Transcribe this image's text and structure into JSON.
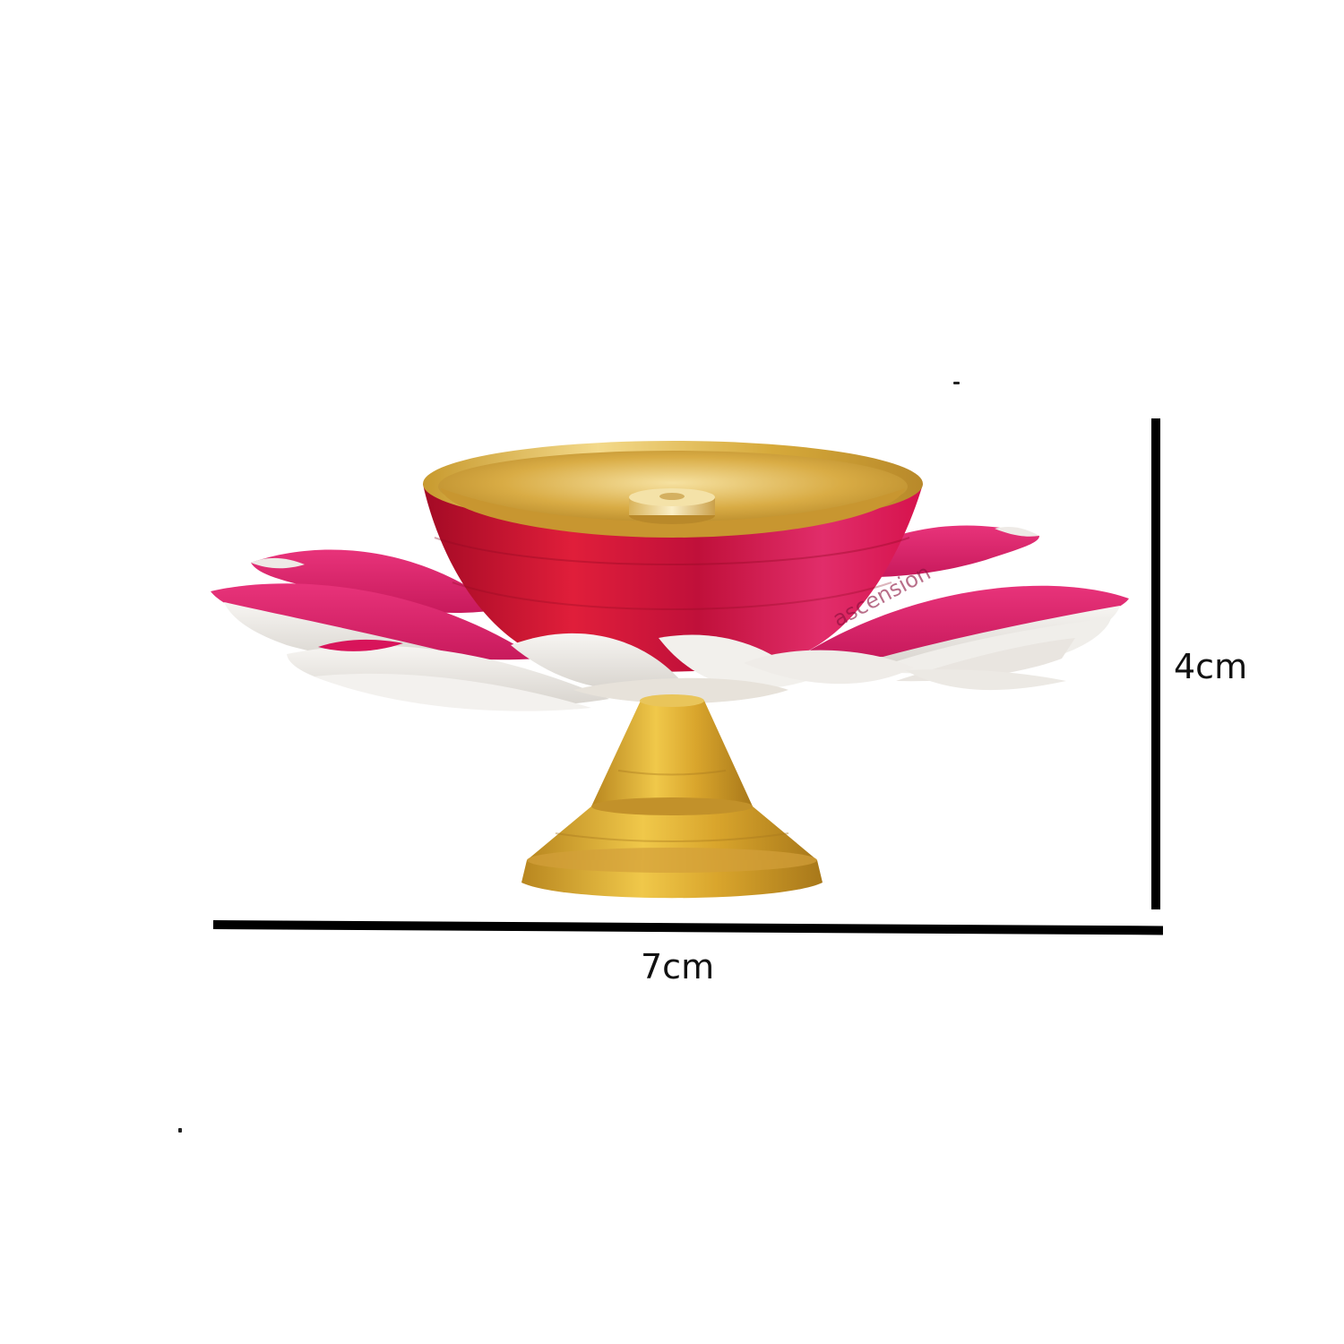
{
  "image": {
    "subject": "lotus-diya",
    "watermark": "ascension"
  },
  "dimensions": {
    "width_label": "7cm",
    "height_label": "4cm"
  },
  "colors": {
    "background": "#ffffff",
    "gold": "#d4a52a",
    "gold_light": "#f2d77a",
    "red": "#c8102e",
    "pink": "#e0336f",
    "silver": "#eceae6",
    "line": "#000000"
  }
}
